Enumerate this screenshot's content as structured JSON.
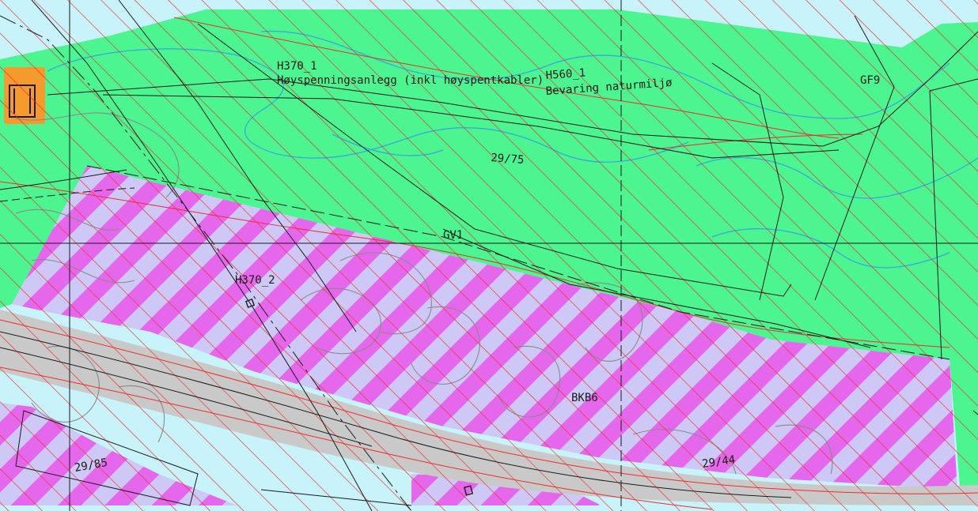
{
  "colors": {
    "water": "#c8f3fb",
    "green_zone": "#4cf58f",
    "purple_stripe_light": "#cdc8f5",
    "purple_stripe_dark": "#e568ec",
    "road": "#c9c9c9",
    "orange_building": "#f79a2e",
    "hatch_red": "#ee2c2c",
    "contour_blue": "#38a8d8",
    "contour_grey": "#8a8a8a",
    "line_black": "#1a1a1a"
  },
  "labels": {
    "h370_1": "H370_1",
    "h370_1_desc": "Høyspenningsanlegg (inkl høyspentkabler)",
    "h560_1": "H560_1",
    "h560_1_desc": "Bevaring naturmiljø",
    "gf9": "GF9",
    "parcel_2975": "29/75",
    "gv1": "GV1",
    "h370_2": "H370_2",
    "bkb6": "BKB6",
    "parcel_2985": "29/85",
    "parcel_2944": "29/44"
  }
}
